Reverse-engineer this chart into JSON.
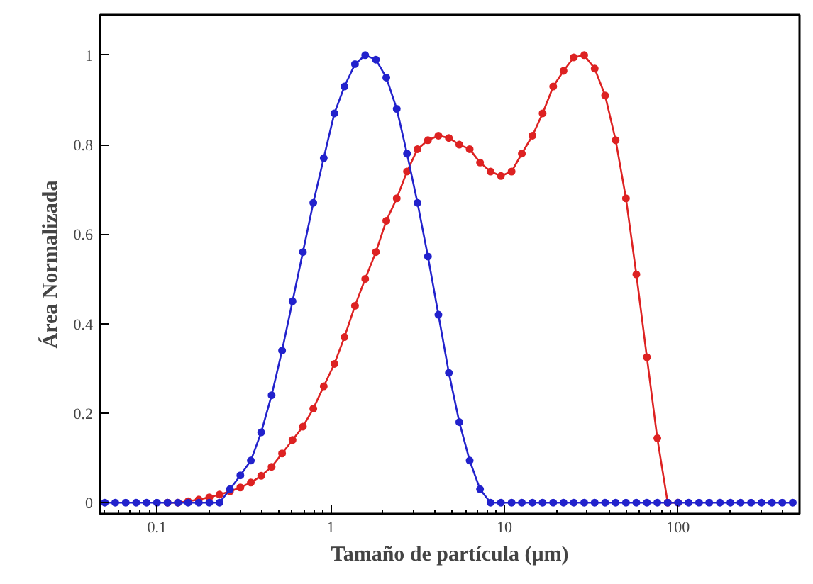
{
  "chart_data": {
    "type": "line",
    "xlabel": "Tamaño de partícula (μm)",
    "ylabel": "Área Normalizada",
    "log": "x",
    "grid": false,
    "marker": "circle",
    "line_style": "solid",
    "x": [
      0.0501,
      0.0575,
      0.0661,
      0.0759,
      0.0871,
      0.1,
      0.115,
      0.132,
      0.151,
      0.174,
      0.2,
      0.229,
      0.263,
      0.302,
      0.347,
      0.398,
      0.457,
      0.525,
      0.603,
      0.692,
      0.794,
      0.912,
      1.05,
      1.2,
      1.38,
      1.58,
      1.82,
      2.09,
      2.4,
      2.75,
      3.16,
      3.63,
      4.17,
      4.79,
      5.5,
      6.31,
      7.24,
      8.32,
      9.55,
      11.0,
      12.6,
      14.5,
      16.6,
      19.1,
      21.9,
      25.1,
      28.8,
      33.1,
      38.0,
      43.7,
      50.1,
      57.5,
      66.1,
      75.9,
      87.1,
      100,
      115,
      132,
      151,
      174,
      200,
      229,
      263,
      302,
      347,
      398,
      457
    ],
    "xlim": [
      0.047,
      500
    ],
    "xticks": [
      0.1,
      1,
      10,
      100
    ],
    "ylim": [
      -0.025,
      1.09
    ],
    "yticks": [
      0,
      0.2,
      0.4,
      0.6,
      0.8,
      1
    ],
    "series": [
      {
        "color": "#dd2222",
        "values": [
          null,
          null,
          null,
          null,
          null,
          null,
          0,
          0,
          0.003,
          0.007,
          0.012,
          0.018,
          0.025,
          0.034,
          0.045,
          0.06,
          0.08,
          0.11,
          0.14,
          0.17,
          0.21,
          0.26,
          0.31,
          0.37,
          0.44,
          0.5,
          0.56,
          0.63,
          0.68,
          0.74,
          0.79,
          0.81,
          0.82,
          0.815,
          0.8,
          0.79,
          0.76,
          0.74,
          0.73,
          0.74,
          0.78,
          0.82,
          0.87,
          0.93,
          0.965,
          0.995,
          1.0,
          0.97,
          0.91,
          0.81,
          0.68,
          0.51,
          0.325,
          0.144,
          0,
          0,
          null,
          null,
          null,
          null,
          null,
          null,
          null,
          null,
          null,
          null,
          null
        ]
      },
      {
        "color": "#2222cc",
        "values": [
          0,
          0,
          0,
          0,
          0,
          0,
          0,
          0,
          0,
          0,
          0,
          0,
          0.03,
          0.061,
          0.094,
          0.157,
          0.24,
          0.34,
          0.45,
          0.56,
          0.67,
          0.77,
          0.87,
          0.93,
          0.98,
          1.0,
          0.99,
          0.95,
          0.88,
          0.78,
          0.67,
          0.55,
          0.42,
          0.29,
          0.18,
          0.094,
          0.03,
          0,
          0,
          0,
          0,
          0,
          0,
          0,
          0,
          0,
          0,
          0,
          0,
          0,
          0,
          0,
          0,
          0,
          0,
          0,
          0,
          0,
          0,
          0,
          0,
          0,
          0,
          0,
          0,
          0,
          0
        ]
      }
    ]
  }
}
